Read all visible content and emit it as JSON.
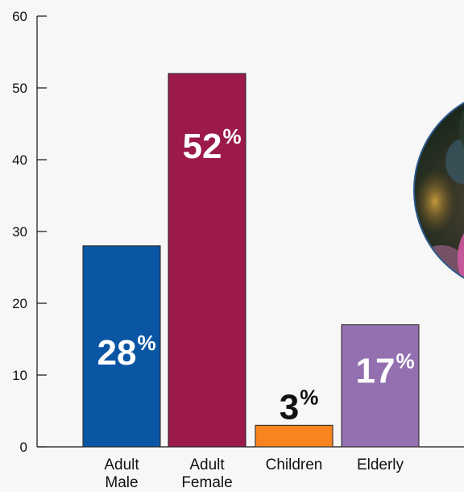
{
  "chart_data": {
    "type": "bar",
    "title": "",
    "xlabel": "",
    "ylabel": "",
    "ylim": [
      0,
      60
    ],
    "yticks": [
      0,
      10,
      20,
      30,
      40,
      50,
      60
    ],
    "grid": false,
    "categories": [
      {
        "lines": [
          "Adult",
          "Male"
        ]
      },
      {
        "lines": [
          "Adult",
          "Female"
        ]
      },
      {
        "lines": [
          "Children"
        ]
      },
      {
        "lines": [
          "Elderly"
        ]
      }
    ],
    "values": [
      28,
      52,
      3,
      17
    ],
    "data_labels": [
      "28",
      "52",
      "3",
      "17"
    ],
    "percent_sign": "%",
    "bar_colors": [
      "#0b56a4",
      "#9b1a4a",
      "#f7841f",
      "#9470b0"
    ],
    "label_colors": [
      "#ffffff",
      "#ffffff",
      "#111111",
      "#ffffff"
    ]
  },
  "photo": {
    "icon": "photo-circle"
  }
}
